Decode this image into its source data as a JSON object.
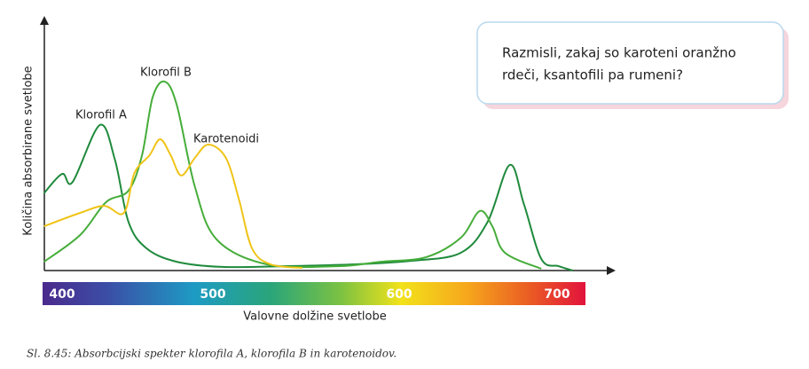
{
  "chart_data": {
    "type": "line",
    "ylabel": "Količina absorbirane svetlobe",
    "xlabel": "Valovne dolžine svetlobe",
    "xlim": [
      388,
      735
    ],
    "ylim": [
      0,
      100
    ],
    "xticks": [
      400,
      500,
      600,
      700
    ],
    "series": [
      {
        "name": "Klorofil A",
        "color": "#1f8a3c",
        "x": [
          388,
          400,
          407,
          425,
          435,
          444,
          456,
          476,
          505,
          538,
          576,
          608,
          639,
          656,
          670,
          679,
          690,
          701,
          710
        ],
        "values": [
          38.7,
          48.4,
          44.4,
          72.9,
          55.6,
          24.4,
          11.1,
          4.4,
          1.8,
          2.2,
          3.1,
          4.9,
          8.9,
          24.4,
          52.9,
          33.3,
          5.8,
          2.2,
          0
        ]
      },
      {
        "name": "Klorofil B",
        "color": "#46ad3a",
        "x": [
          388,
          412,
          429,
          444,
          453,
          460,
          468,
          476,
          488,
          502,
          529,
          567,
          590,
          617,
          639,
          651,
          659,
          667,
          690
        ],
        "values": [
          4.4,
          17.8,
          34.2,
          40,
          57.8,
          86.7,
          94.7,
          83.1,
          42.2,
          15.6,
          3.1,
          2.2,
          4.4,
          6.7,
          16.4,
          29.8,
          22.2,
          8.9,
          0.9
        ]
      },
      {
        "name": "Karotenoidi",
        "color": "#f0c419",
        "x": [
          388,
          412,
          428,
          441,
          448,
          458,
          465,
          472,
          479,
          488,
          497,
          507,
          514,
          521,
          531,
          548
        ],
        "values": [
          22.2,
          28.9,
          32.4,
          28.9,
          48.9,
          57.8,
          65.8,
          57.8,
          47.6,
          56.4,
          63.1,
          56.4,
          35.6,
          11.1,
          3.1,
          1.3
        ]
      }
    ]
  },
  "callout": {
    "lines": [
      "Razmisli, zakaj so karoteni oranžno",
      "rdeči, ksantofili pa rumeni?"
    ]
  },
  "caption": "Sl. 8.45: Absorbcijski spekter klorofila A, klorofila B in karotenoidov."
}
